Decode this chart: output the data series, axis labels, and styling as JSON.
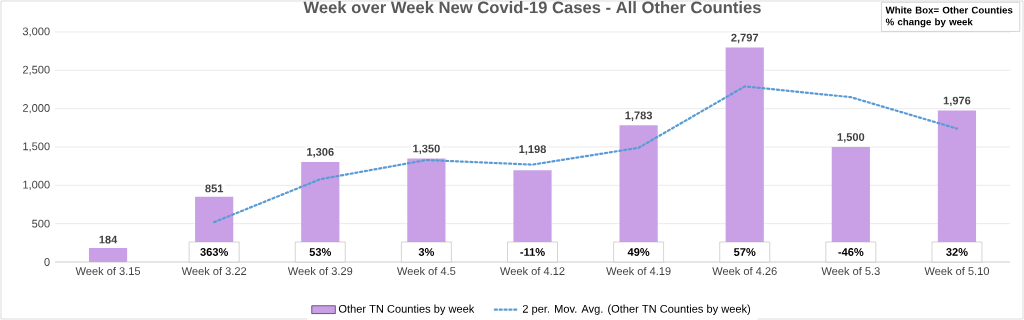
{
  "chart_data": {
    "type": "bar",
    "title": "Week over Week New Covid-19 Cases - All Other Counties",
    "categories": [
      "Week of 3.15",
      "Week of 3.22",
      "Week of 3.29",
      "Week of 4.5",
      "Week of 4.12",
      "Week of 4.19",
      "Week of 4.26",
      "Week of 5.3",
      "Week of 5.10"
    ],
    "series": [
      {
        "name": "Other TN Counties by week",
        "color": "#c9a0e6",
        "values": [
          184,
          851,
          1306,
          1350,
          1198,
          1783,
          2797,
          1500,
          1976
        ],
        "value_labels": [
          "184",
          "851",
          "1,306",
          "1,350",
          "1,198",
          "1,783",
          "2,797",
          "1,500",
          "1,976"
        ]
      },
      {
        "name": "2 per. Mov. Avg. (Other TN Counties by week)",
        "type": "line",
        "color": "#5b9bd5",
        "line_style": "dotted",
        "marker": "none",
        "values": [
          null,
          520,
          1080,
          1330,
          1270,
          1490,
          2290,
          2150,
          1740
        ]
      }
    ],
    "ylim": [
      0,
      3000
    ],
    "yticks": [
      0,
      500,
      {
        "value": 1000,
        "label": "1,000"
      },
      {
        "value": 1500,
        "label": "1,500"
      },
      {
        "value": 2000,
        "label": "2,000"
      },
      {
        "value": 2500,
        "label": "2,500"
      },
      {
        "value": 3000,
        "label": "3,000"
      }
    ],
    "grid": "y",
    "legend": "bottom",
    "annotations": [
      "White Box= Other Counties % change by week",
      "363%",
      "53%",
      "3%",
      "-11%",
      "49%",
      "57%",
      "-46%",
      "32%"
    ]
  }
}
